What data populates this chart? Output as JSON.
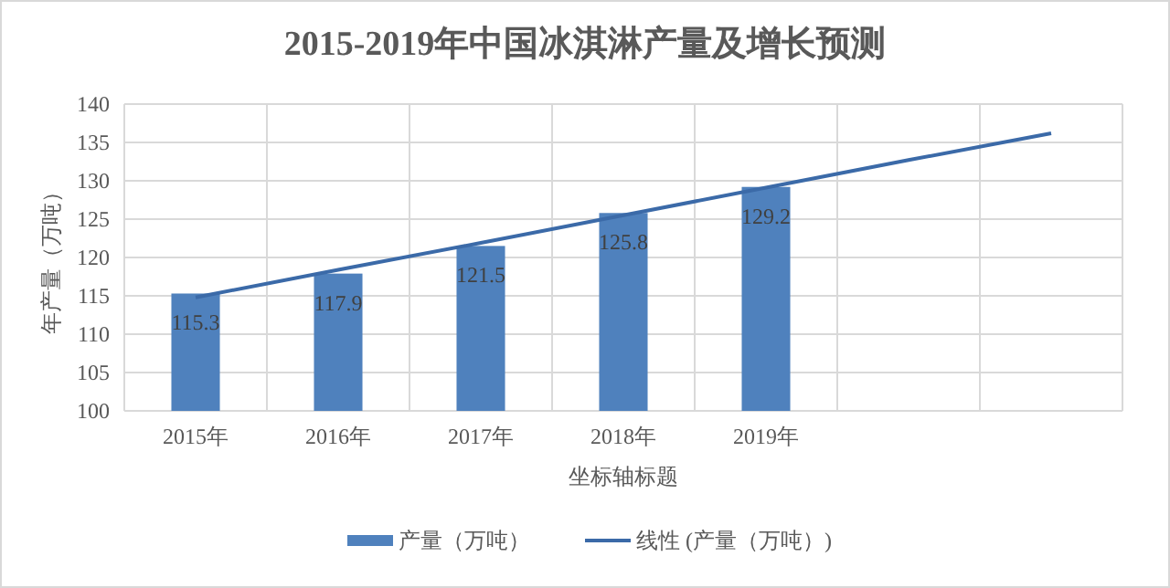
{
  "chart_data": {
    "type": "bar",
    "title": "2015-2019年中国冰淇淋产量及增长预测",
    "xlabel": "坐标轴标题",
    "ylabel": "年产量（万吨）",
    "categories": [
      "2015年",
      "2016年",
      "2017年",
      "2018年",
      "2019年",
      null,
      null
    ],
    "series": [
      {
        "name": "产量（万吨）",
        "color": "#4f81bd",
        "values": [
          115.3,
          117.9,
          121.5,
          125.8,
          129.2,
          null,
          null
        ],
        "value_labels": [
          "115.3",
          "117.9",
          "121.5",
          "125.8",
          "129.2",
          null,
          null
        ]
      },
      {
        "name": "线性 (产量（万吨）)",
        "type": "line",
        "color": "#3b6aa8",
        "values": [
          114.8,
          118.4,
          121.9,
          125.5,
          129.1,
          132.7,
          136.2
        ]
      }
    ],
    "ylim": [
      100,
      140
    ],
    "yticks": [
      100,
      105,
      110,
      115,
      120,
      125,
      130,
      135,
      140
    ],
    "grid": true,
    "legend": "bottom"
  }
}
